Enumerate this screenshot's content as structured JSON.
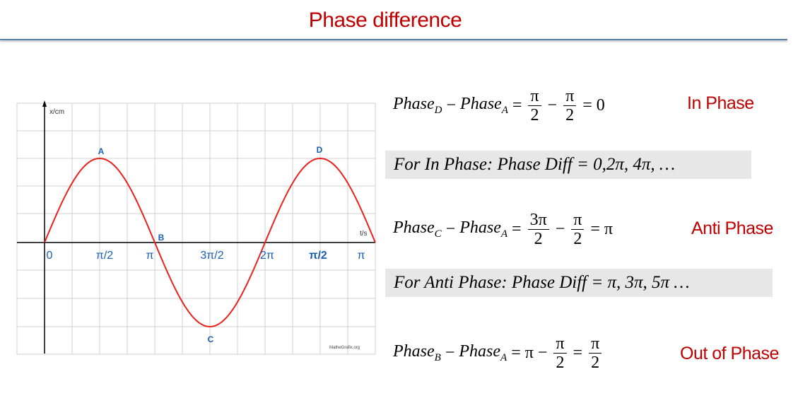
{
  "title": "Phase difference",
  "graph": {
    "y_axis_label": "x/cm",
    "x_axis_label": "t/s",
    "x_tick_labels": [
      "0",
      "π/2",
      "π",
      "3π/2",
      "2π",
      "π/2",
      "π"
    ],
    "points": [
      "A",
      "B",
      "C",
      "D"
    ],
    "credit": "MatheGrafix.org"
  },
  "equations": [
    {
      "term": "Phase",
      "sub": "D",
      "op": "−",
      "term2": "Phase",
      "sub2": "A",
      "rhs": [
        {
          "text": "="
        },
        {
          "num": "π",
          "den": "2"
        },
        {
          "text": "−"
        },
        {
          "num": "π",
          "den": "2"
        },
        {
          "text": "= 0"
        }
      ],
      "result": "In Phase"
    },
    {
      "term": "Phase",
      "sub": "C",
      "op": "−",
      "term2": "Phase",
      "sub2": "A",
      "rhs": [
        {
          "text": "="
        },
        {
          "num": "3π",
          "den": "2"
        },
        {
          "text": "−"
        },
        {
          "num": "π",
          "den": "2"
        },
        {
          "text": "= π"
        }
      ],
      "result": "Anti Phase"
    },
    {
      "term": "Phase",
      "sub": "B",
      "op": "−",
      "term2": "Phase",
      "sub2": "A",
      "rhs": [
        {
          "text": "= π −"
        },
        {
          "num": "π",
          "den": "2"
        },
        {
          "text": "="
        },
        {
          "num": "π",
          "den": "2"
        }
      ],
      "result": "Out of Phase"
    }
  ],
  "rules": [
    "For In Phase: Phase Diff = 0,2π, 4π, …",
    "For Anti Phase: Phase Diff = π, 3π, 5π …"
  ]
}
